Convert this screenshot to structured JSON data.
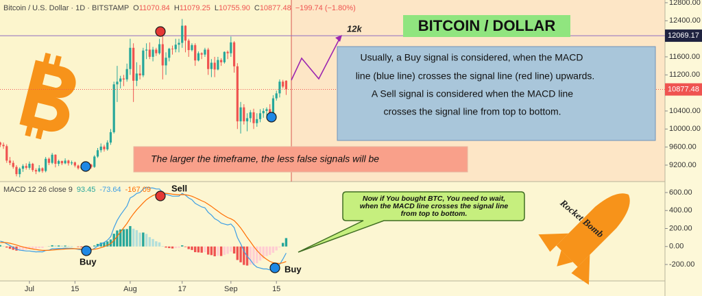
{
  "header": {
    "title": "Bitcoin / U.S. Dollar · 1D · BITSTAMP",
    "fields": [
      [
        "O",
        "11070.84"
      ],
      [
        "H",
        "11079.25"
      ],
      [
        "L",
        "10755.90"
      ],
      [
        "C",
        "10877.48"
      ]
    ],
    "change": "−199.74 (−1.80%)"
  },
  "annotations": {
    "target": "12k",
    "title": "BITCOIN / DOLLAR",
    "explanation": [
      "Usually, a Buy signal is considered, when the MACD",
      "line (blue line) crosses the signal line (red line) upwards.",
      "A Sell signal is considered when the MACD line",
      "crosses the signal line from top to bottom."
    ],
    "timeframe_note": "The larger the timeframe, the less false signals will be",
    "callout": [
      "Now if You bought BTC, You need to wait,",
      "when the MACD line  crosses the signal line",
      "from top to bottom."
    ],
    "sell": "Sell",
    "buy": [
      "Buy",
      "Buy"
    ],
    "rocket": "Rocket Bomb"
  },
  "chart_data": [
    {
      "type": "candlestick",
      "categories": [
        null,
        null,
        null,
        null,
        null,
        null,
        null,
        null,
        null,
        "Jul",
        null,
        null,
        null,
        null,
        null,
        null,
        null,
        null,
        null,
        null,
        null,
        null,
        null,
        "15",
        null,
        null,
        null,
        null,
        null,
        null,
        null,
        null,
        null,
        null,
        null,
        null,
        null,
        null,
        null,
        null,
        "Aug",
        null,
        null,
        null,
        null,
        null,
        null,
        null,
        null,
        null,
        null,
        null,
        null,
        null,
        null,
        null,
        "17",
        null,
        null,
        null,
        null,
        null,
        null,
        null,
        null,
        null,
        null,
        null,
        null,
        null,
        null,
        "Sep",
        null,
        null,
        null,
        null,
        null,
        null,
        null,
        null,
        null,
        null,
        null,
        null,
        null,
        "15",
        null,
        null,
        null
      ],
      "open": [
        9700,
        9650,
        9620,
        9300,
        9250,
        9160,
        9000,
        9120,
        9180,
        9140,
        9230,
        9090,
        9060,
        9130,
        9070,
        9340,
        9250,
        9430,
        9230,
        9290,
        9240,
        9300,
        9240,
        9260,
        9190,
        9130,
        9150,
        9170,
        9210,
        9160,
        9390,
        9530,
        9610,
        9550,
        9700,
        9930,
        10990,
        11050,
        11120,
        11100,
        11330,
        11800,
        11070,
        11230,
        11190,
        11740,
        11760,
        11600,
        11760,
        11680,
        11880,
        11410,
        11580,
        11780,
        11770,
        11870,
        11910,
        12290,
        11960,
        11750,
        11860,
        11520,
        11680,
        11650,
        11760,
        11330,
        11470,
        11320,
        11530,
        11480,
        11710,
        11680,
        11920,
        11390,
        10170,
        10480,
        10170,
        10240,
        10370,
        10130,
        10220,
        10350,
        10400,
        10440,
        10330,
        10680,
        10790,
        11050,
        11070.84
      ],
      "high": [
        9720,
        9700,
        9660,
        9380,
        9300,
        9200,
        9150,
        9220,
        9240,
        9280,
        9250,
        9130,
        9200,
        9150,
        9380,
        9370,
        9470,
        9440,
        9320,
        9300,
        9350,
        9320,
        9300,
        9280,
        9210,
        9200,
        9210,
        9250,
        9230,
        9420,
        9580,
        9680,
        9650,
        9750,
        10000,
        11050,
        11400,
        11180,
        11200,
        11450,
        12000,
        11900,
        11480,
        11420,
        11800,
        11900,
        11920,
        11820,
        11800,
        12000,
        12080,
        11700,
        11800,
        11850,
        12000,
        12000,
        12440,
        12300,
        12000,
        11900,
        11900,
        11720,
        11700,
        11800,
        11800,
        11550,
        11600,
        11600,
        11570,
        11720,
        11740,
        12050,
        11950,
        11460,
        10600,
        10550,
        10350,
        10420,
        10450,
        10350,
        10440,
        10460,
        10480,
        10550,
        10750,
        10850,
        11100,
        11090,
        11079.25
      ],
      "low": [
        9600,
        9560,
        9250,
        9200,
        9120,
        8950,
        8930,
        9050,
        9100,
        9100,
        9050,
        9000,
        9040,
        9030,
        9040,
        9200,
        9220,
        9150,
        9180,
        9200,
        9220,
        9190,
        9200,
        9150,
        9100,
        9100,
        9120,
        9140,
        9120,
        9140,
        9360,
        9480,
        9500,
        9520,
        9650,
        9900,
        10600,
        10900,
        10950,
        11050,
        11200,
        10600,
        10950,
        11100,
        11150,
        11550,
        11550,
        11500,
        11620,
        11650,
        11100,
        11200,
        11500,
        11650,
        11700,
        11700,
        11800,
        11700,
        11600,
        11720,
        11400,
        11500,
        11550,
        11600,
        11200,
        11150,
        11150,
        11300,
        11400,
        11450,
        11550,
        11600,
        11250,
        10000,
        9900,
        10100,
        9950,
        10150,
        10000,
        10050,
        10150,
        10250,
        10300,
        10250,
        10250,
        10630,
        10700,
        10900,
        10755.9
      ],
      "close": [
        9650,
        9620,
        9300,
        9250,
        9160,
        9000,
        9120,
        9180,
        9140,
        9230,
        9090,
        9060,
        9130,
        9070,
        9340,
        9250,
        9430,
        9230,
        9290,
        9240,
        9300,
        9240,
        9260,
        9190,
        9130,
        9150,
        9170,
        9210,
        9160,
        9390,
        9530,
        9610,
        9550,
        9700,
        9930,
        10990,
        11050,
        11120,
        11100,
        11330,
        11800,
        11070,
        11230,
        11190,
        11740,
        11760,
        11600,
        11760,
        11680,
        11880,
        11410,
        11580,
        11780,
        11770,
        11870,
        11910,
        12290,
        11960,
        11750,
        11860,
        11520,
        11680,
        11650,
        11760,
        11330,
        11470,
        11320,
        11530,
        11480,
        11710,
        11680,
        11920,
        11390,
        10170,
        10480,
        10170,
        10240,
        10370,
        10130,
        10220,
        10350,
        10400,
        10440,
        10330,
        10680,
        10790,
        11050,
        10940,
        10877.48
      ],
      "up_color": "#26a69a",
      "down_color": "#ef5350",
      "ylim": [
        8835,
        12860
      ],
      "yticks": [
        {
          "value": 9200,
          "label": "9200.00"
        },
        {
          "value": 9600,
          "label": "9600.00"
        },
        {
          "value": 10000,
          "label": "10000.00"
        },
        {
          "value": 10400,
          "label": "10400.00"
        },
        {
          "value": 11200,
          "label": "11200.00"
        },
        {
          "value": 11600,
          "label": "11600.00"
        },
        {
          "value": 12400,
          "label": "12400.00"
        },
        {
          "value": 12800,
          "label": "12800.00"
        }
      ],
      "hline": {
        "value": 12069.17,
        "color": "#8e6bbf"
      }
    },
    {
      "type": "macd",
      "title": "MACD 12 26 close 9",
      "series": [
        {
          "color": "#3c9ee5",
          "values": [
            60,
            50,
            30,
            10,
            -10,
            -30,
            -40,
            -45,
            -50,
            -50,
            -55,
            -60,
            -58,
            -60,
            -45,
            -40,
            -25,
            -25,
            -22,
            -22,
            -18,
            -20,
            -20,
            -25,
            -32,
            -38,
            -40,
            -38,
            -40,
            -20,
            5,
            30,
            45,
            70,
            110,
            210,
            290,
            350,
            400,
            450,
            540,
            560,
            590,
            600,
            640,
            660,
            650,
            650,
            640,
            640,
            600,
            580,
            570,
            560,
            560,
            560,
            590,
            570,
            540,
            520,
            480,
            460,
            440,
            430,
            380,
            350,
            310,
            290,
            260,
            250,
            240,
            250,
            210,
            100,
            30,
            -50,
            -110,
            -150,
            -200,
            -230,
            -240,
            -250,
            -250,
            -260,
            -250,
            -230,
            -200,
            -140,
            -73.64
          ]
        },
        {
          "color": "#ff6d00",
          "values": [
            44,
            45,
            42,
            36,
            27,
            16,
            5,
            -5,
            -14,
            -21,
            -28,
            -34,
            -39,
            -43,
            -43,
            -42,
            -39,
            -36,
            -33,
            -31,
            -28,
            -26,
            -25,
            -25,
            -26,
            -28,
            -30,
            -32,
            -34,
            -31,
            -24,
            -13,
            -1,
            13,
            32,
            68,
            112,
            160,
            208,
            256,
            313,
            362,
            408,
            446,
            485,
            520,
            546,
            567,
            582,
            594,
            595,
            592,
            588,
            582,
            578,
            574,
            577,
            576,
            569,
            559,
            543,
            526,
            509,
            493,
            470,
            446,
            419,
            393,
            366,
            343,
            322,
            308,
            288,
            250,
            206,
            155,
            102,
            52,
            2,
            -44,
            -83,
            -116,
            -143,
            -166,
            -180,
            -186,
            -189,
            -180,
            -167.09
          ]
        }
      ],
      "histogram": {
        "colors": [
          "#26a69a",
          "#b2dfdb",
          "#ffcdd2",
          "#ef5350"
        ],
        "values": [
          16,
          5,
          -12,
          -26,
          -37,
          -46,
          -45,
          -40,
          -36,
          -29,
          -27,
          -26,
          -19,
          -17,
          -2,
          2,
          14,
          11,
          11,
          9,
          10,
          6,
          5,
          0,
          -6,
          -10,
          -10,
          -6,
          -6,
          11,
          29,
          43,
          46,
          57,
          78,
          142,
          178,
          190,
          192,
          194,
          227,
          198,
          182,
          154,
          155,
          140,
          104,
          83,
          58,
          46,
          5,
          -12,
          -18,
          -22,
          -18,
          -14,
          13,
          -6,
          -29,
          -39,
          -63,
          -66,
          -69,
          -63,
          -90,
          -96,
          -109,
          -103,
          -106,
          -93,
          -82,
          -58,
          -78,
          -150,
          -176,
          -205,
          -212,
          -202,
          -202,
          -186,
          -157,
          -134,
          -107,
          -94,
          -70,
          -44,
          -11,
          40,
          93.45
        ]
      },
      "ylim": [
        -383,
        722
      ],
      "yticks": [
        {
          "value": -200,
          "label": "-200.00"
        },
        {
          "value": 0,
          "label": "0.00"
        },
        {
          "value": 200,
          "label": "200.00"
        },
        {
          "value": 400,
          "label": "400.00"
        },
        {
          "value": 600,
          "label": "600.00"
        }
      ]
    }
  ]
}
